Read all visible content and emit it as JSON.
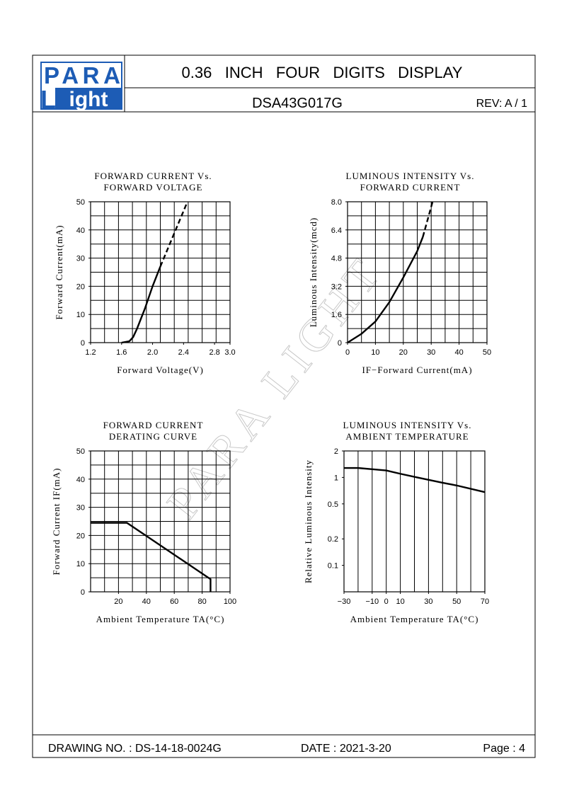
{
  "header": {
    "logo": [
      "PARA",
      "L",
      "ight"
    ],
    "title": "0.36   INCH   FOUR   DIGITS   DISPLAY",
    "part": "DSA43G017G",
    "rev": "REV: A / 1"
  },
  "watermark": "PARA LIGHT",
  "footer": {
    "drawing": "DRAWING NO. : DS-14-18-0024G",
    "date": "DATE : 2021-3-20",
    "page": "Page : 4"
  },
  "chart_data": [
    {
      "type": "line",
      "title": [
        "FORWARD CURRENT Vs.",
        "FORWARD VOLTAGE"
      ],
      "xlabel": "Forward Voltage(V)",
      "ylabel": "Forward Current(mA)",
      "xlim": [
        1.2,
        3.0
      ],
      "xticks": [
        1.2,
        1.6,
        {
          "value": 2,
          "label": "2.0"
        },
        2.4,
        2.8,
        {
          "value": 3,
          "label": "3.0"
        }
      ],
      "ylim": [
        0,
        50
      ],
      "yticks": [
        0,
        10,
        20,
        30,
        40,
        50
      ],
      "grid": true,
      "series": [
        {
          "x": [
            1.6,
            1.7,
            1.75,
            1.8,
            1.9,
            2.0,
            2.1
          ],
          "values": [
            0,
            0.5,
            2,
            5,
            12,
            20,
            27
          ],
          "dashed": false
        },
        {
          "x": [
            2.1,
            2.45
          ],
          "values": [
            27,
            50
          ],
          "dashed": true
        }
      ]
    },
    {
      "type": "line",
      "title": [
        "LUMINOUS INTENSITY Vs.",
        "FORWARD CURRENT"
      ],
      "xlabel": "IF−Forward Current(mA)",
      "ylabel": "Luminous Intensity(mcd)",
      "xlim": [
        0,
        50
      ],
      "xticks": [
        0,
        10,
        20,
        30,
        40,
        50
      ],
      "ylim": [
        0,
        8
      ],
      "yticks": [
        0,
        1.6,
        3.2,
        4.8,
        6.4,
        {
          "value": 8,
          "label": "8.0"
        }
      ],
      "grid": true,
      "series": [
        {
          "x": [
            0,
            5,
            10,
            15,
            20,
            25,
            27
          ],
          "values": [
            0,
            0.5,
            1.2,
            2.3,
            3.7,
            5.2,
            6.0
          ],
          "dashed": false
        },
        {
          "x": [
            27,
            30.5
          ],
          "values": [
            6.0,
            8.0
          ],
          "dashed": true
        }
      ]
    },
    {
      "type": "line",
      "title": [
        "FORWARD CURRENT",
        "DERATING CURVE"
      ],
      "xlabel": "Ambient Temperature TA(°C)",
      "ylabel": "Forward Current IF(mA)",
      "xlim": [
        0,
        100
      ],
      "xticks": [
        20,
        40,
        60,
        80,
        100
      ],
      "ylim": [
        0,
        50
      ],
      "yticks": [
        0,
        10,
        20,
        30,
        40,
        50
      ],
      "grid": true,
      "series": [
        {
          "x": [
            0,
            26,
            86,
            86
          ],
          "values": [
            24.5,
            24.5,
            4.5,
            0
          ],
          "dashed": false
        }
      ]
    },
    {
      "type": "line",
      "title": [
        "LUMINOUS INTENSITY Vs.",
        "AMBIENT TEMPERATURE"
      ],
      "xlabel": "Ambient Temperature TA(°C)",
      "ylabel": "Relative Luminous Intensity",
      "xlim": [
        -30,
        70
      ],
      "xticks": [
        {
          "value": -30,
          "label": "−30"
        },
        {
          "value": -10,
          "label": "−10"
        },
        0,
        10,
        30,
        50,
        70
      ],
      "ylim": [
        0.05,
        2
      ],
      "yticks": [
        0.1,
        0.2,
        0.5,
        1,
        2
      ],
      "yscale": "log",
      "grid": true,
      "series": [
        {
          "x": [
            -30,
            -20,
            -10,
            0,
            10,
            22,
            40,
            50,
            70
          ],
          "values": [
            1.28,
            1.28,
            1.24,
            1.2,
            1.1,
            1.0,
            0.87,
            0.81,
            0.68
          ],
          "dashed": false
        }
      ]
    }
  ]
}
